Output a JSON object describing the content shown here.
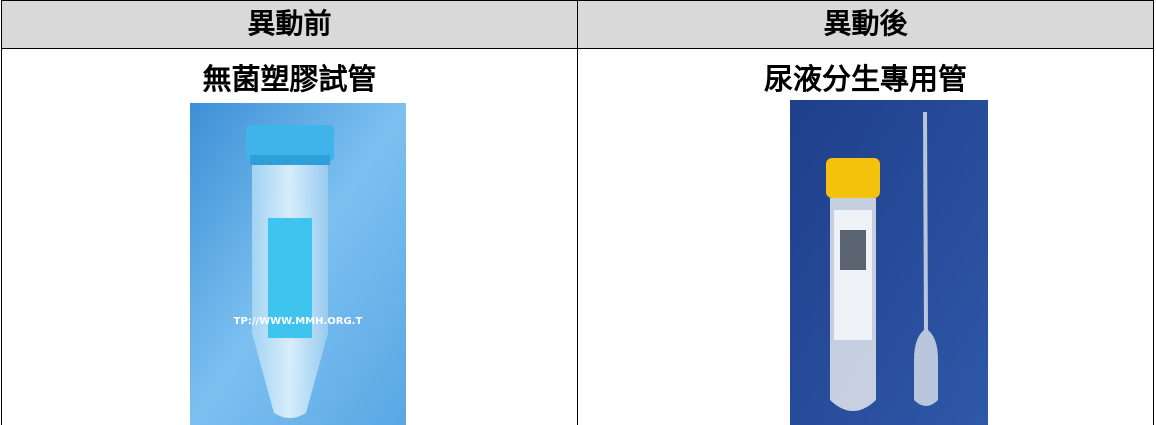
{
  "table": {
    "header": [
      "異動前",
      "異動後"
    ],
    "rows": [
      [
        "無菌塑膠試管",
        "尿液分生專用管"
      ]
    ]
  },
  "images": [
    {
      "watermark": "TP://WWW.MMH.ORG.T"
    }
  ]
}
